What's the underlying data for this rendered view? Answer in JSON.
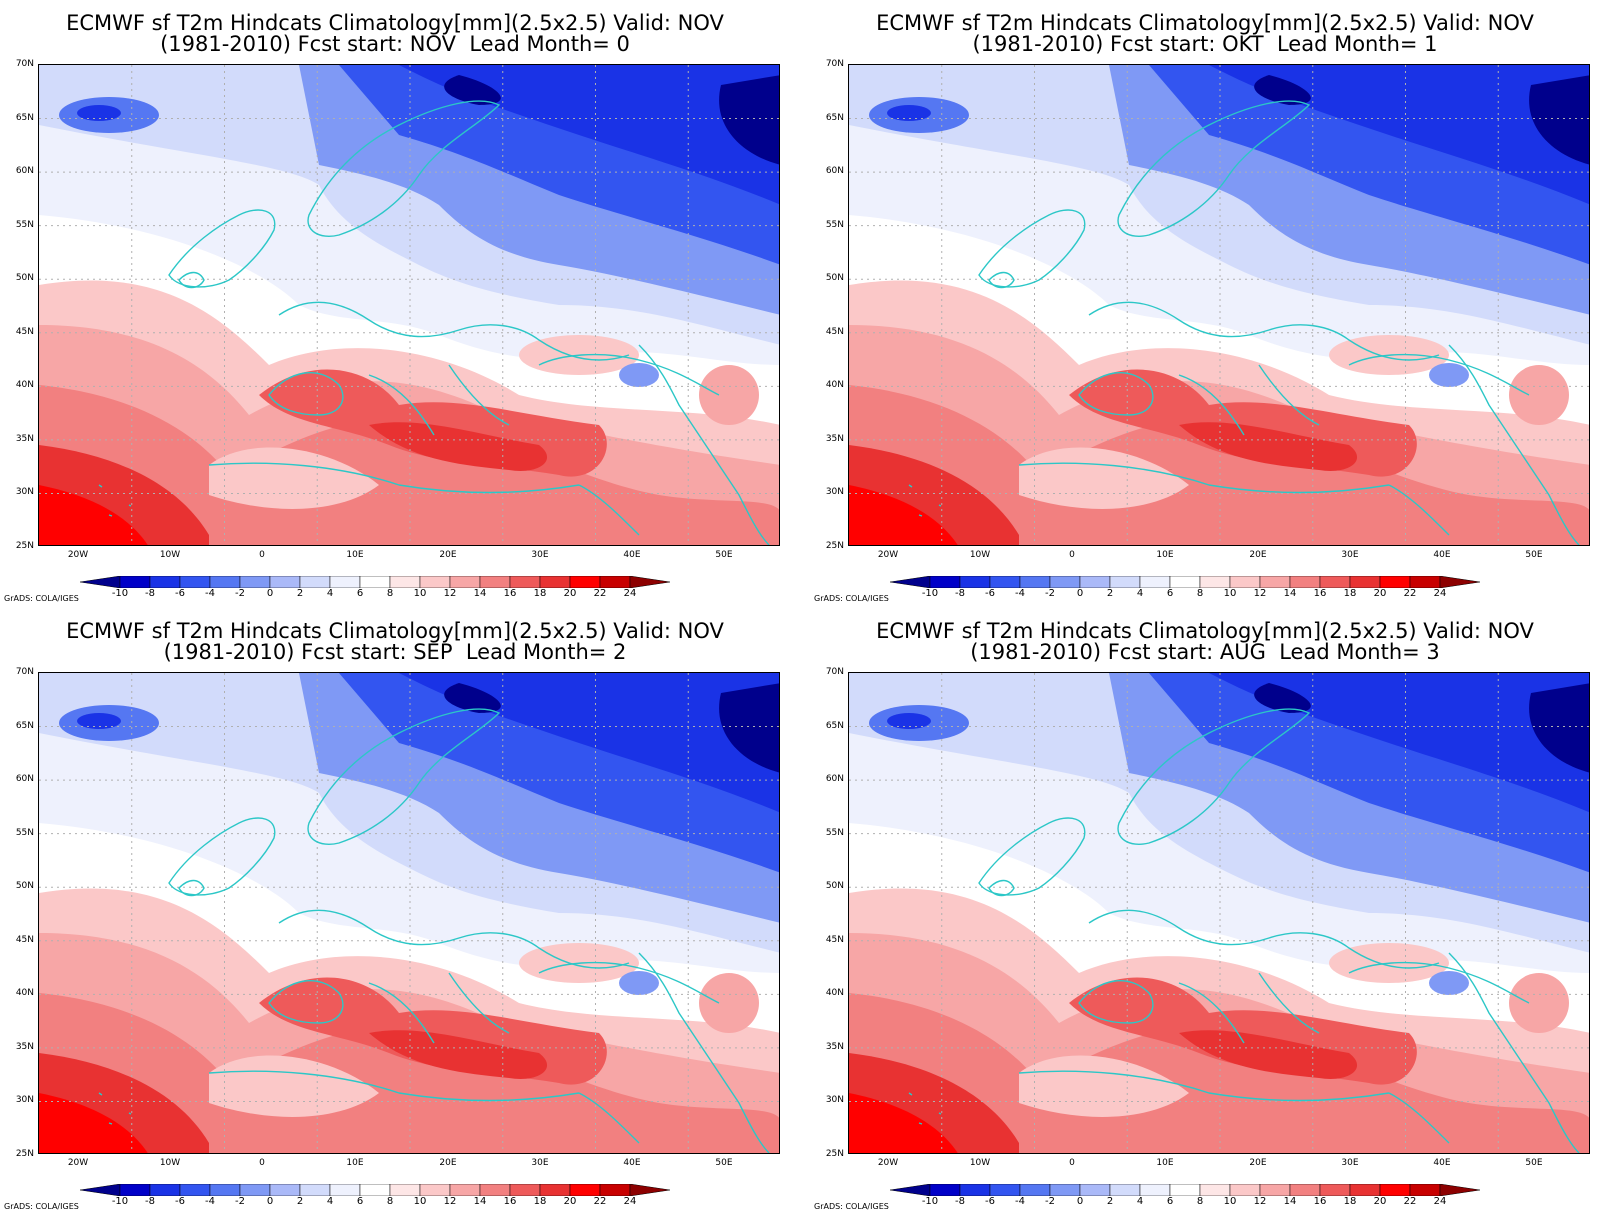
{
  "credit": "GrADS: COLA/IGES",
  "panels": [
    {
      "title1": "ECMWF sf T2m Hindcats Climatology[mm](2.5x2.5) Valid: NOV",
      "title2": "(1981-2010) Fcst start: NOV  Lead Month= 0"
    },
    {
      "title1": "ECMWF sf T2m Hindcats Climatology[mm](2.5x2.5) Valid: NOV",
      "title2": "(1981-2010) Fcst start: OKT  Lead Month= 1"
    },
    {
      "title1": "ECMWF sf T2m Hindcats Climatology[mm](2.5x2.5) Valid: NOV",
      "title2": "(1981-2010) Fcst start: SEP  Lead Month= 2"
    },
    {
      "title1": "ECMWF sf T2m Hindcats Climatology[mm](2.5x2.5) Valid: NOV",
      "title2": "(1981-2010) Fcst start: AUG  Lead Month= 3"
    }
  ],
  "lat_labels": [
    "70N",
    "65N",
    "60N",
    "55N",
    "50N",
    "45N",
    "40N",
    "35N",
    "30N",
    "25N"
  ],
  "lon_labels": [
    "20W",
    "10W",
    "0",
    "10E",
    "20E",
    "30E",
    "40E",
    "50E"
  ],
  "colorbar": {
    "labels": [
      "-10",
      "-8",
      "-6",
      "-4",
      "-2",
      "0",
      "2",
      "4",
      "6",
      "8",
      "10",
      "12",
      "14",
      "16",
      "18",
      "20",
      "22",
      "24"
    ],
    "colors": [
      "#00008c",
      "#0000c8",
      "#1a33e6",
      "#3355f0",
      "#5577f2",
      "#7f99f5",
      "#aab9f8",
      "#d2dbfb",
      "#eef1fd",
      "#ffffff",
      "#fde6e6",
      "#fbc8c8",
      "#f7a6a6",
      "#f28080",
      "#ee5a5a",
      "#e83232",
      "#ff0000",
      "#c80000",
      "#8c0000"
    ]
  }
}
